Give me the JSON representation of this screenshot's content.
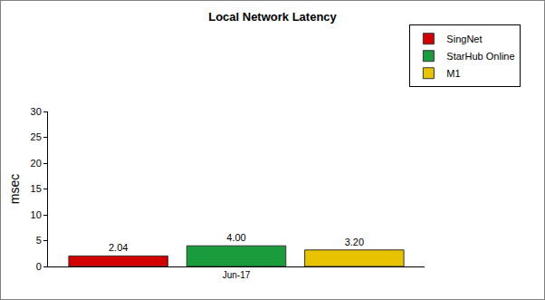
{
  "chart_data": {
    "type": "bar",
    "title": "Local Network Latency",
    "y_label": "msec",
    "categories": [
      "Jun-17"
    ],
    "series": [
      {
        "name": "SingNet",
        "color": "#d40000",
        "values": [
          2.04
        ],
        "value_labels": [
          "2.04"
        ]
      },
      {
        "name": "StarHub Online",
        "color": "#1a9c3c",
        "values": [
          4.0
        ],
        "value_labels": [
          "4.00"
        ]
      },
      {
        "name": "M1",
        "color": "#e8c400",
        "values": [
          3.2
        ],
        "value_labels": [
          "3.20"
        ]
      }
    ],
    "ylim": [
      0,
      30
    ],
    "yticks": [
      0,
      5,
      10,
      15,
      20,
      25,
      30
    ],
    "grid": false,
    "legend": "top-right",
    "data_labels": true
  }
}
